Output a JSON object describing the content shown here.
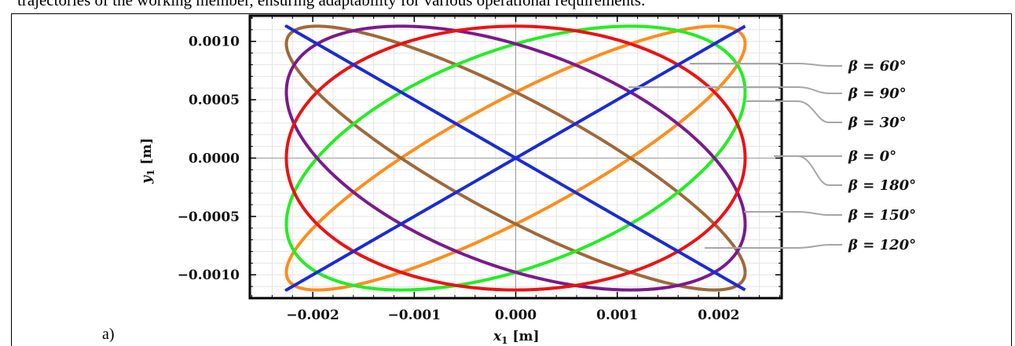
{
  "page": {
    "top_text": "trajectories of the working member, ensuring adaptability for various operational requirements.",
    "panel_label": "a)"
  },
  "chart_data": {
    "type": "line",
    "xlabel_var": "x",
    "xlabel_sub": "1",
    "xlabel_unit": " [m]",
    "ylabel_var": "y",
    "ylabel_sub": "1",
    "ylabel_unit": " [m]",
    "xlim": [
      -0.00262,
      0.00262
    ],
    "ylim": [
      -0.0012,
      0.00122
    ],
    "x_ticks": [
      -0.002,
      -0.001,
      0.0,
      0.001,
      0.002
    ],
    "x_tick_labels": [
      "−0.002",
      "−0.001",
      "0.000",
      "0.001",
      "0.002"
    ],
    "y_ticks": [
      0.001,
      0.0005,
      0.0,
      -0.0005,
      -0.001
    ],
    "y_tick_labels": [
      "0.0010",
      "0.0005",
      "0.0000",
      "−0.0005",
      "−0.0010"
    ],
    "grid": true,
    "legend_placement": "right",
    "amplitude_x": 0.00226,
    "amplitude_y": 0.00113,
    "series": [
      {
        "name": "β = 60°",
        "beta_deg": 60,
        "color": "#22ee22"
      },
      {
        "name": "β = 90°",
        "beta_deg": 90,
        "color": "#ee1111"
      },
      {
        "name": "β = 30°",
        "beta_deg": 30,
        "color": "#ff8c1a"
      },
      {
        "name": "β = 0°",
        "beta_deg": 0,
        "color": "#1a2bd6"
      },
      {
        "name": "β = 180°",
        "beta_deg": 180,
        "color": "#1a2bd6"
      },
      {
        "name": "β = 150°",
        "beta_deg": 150,
        "color": "#a0683a"
      },
      {
        "name": "β = 120°",
        "beta_deg": 120,
        "color": "#7a1a8c"
      }
    ]
  }
}
